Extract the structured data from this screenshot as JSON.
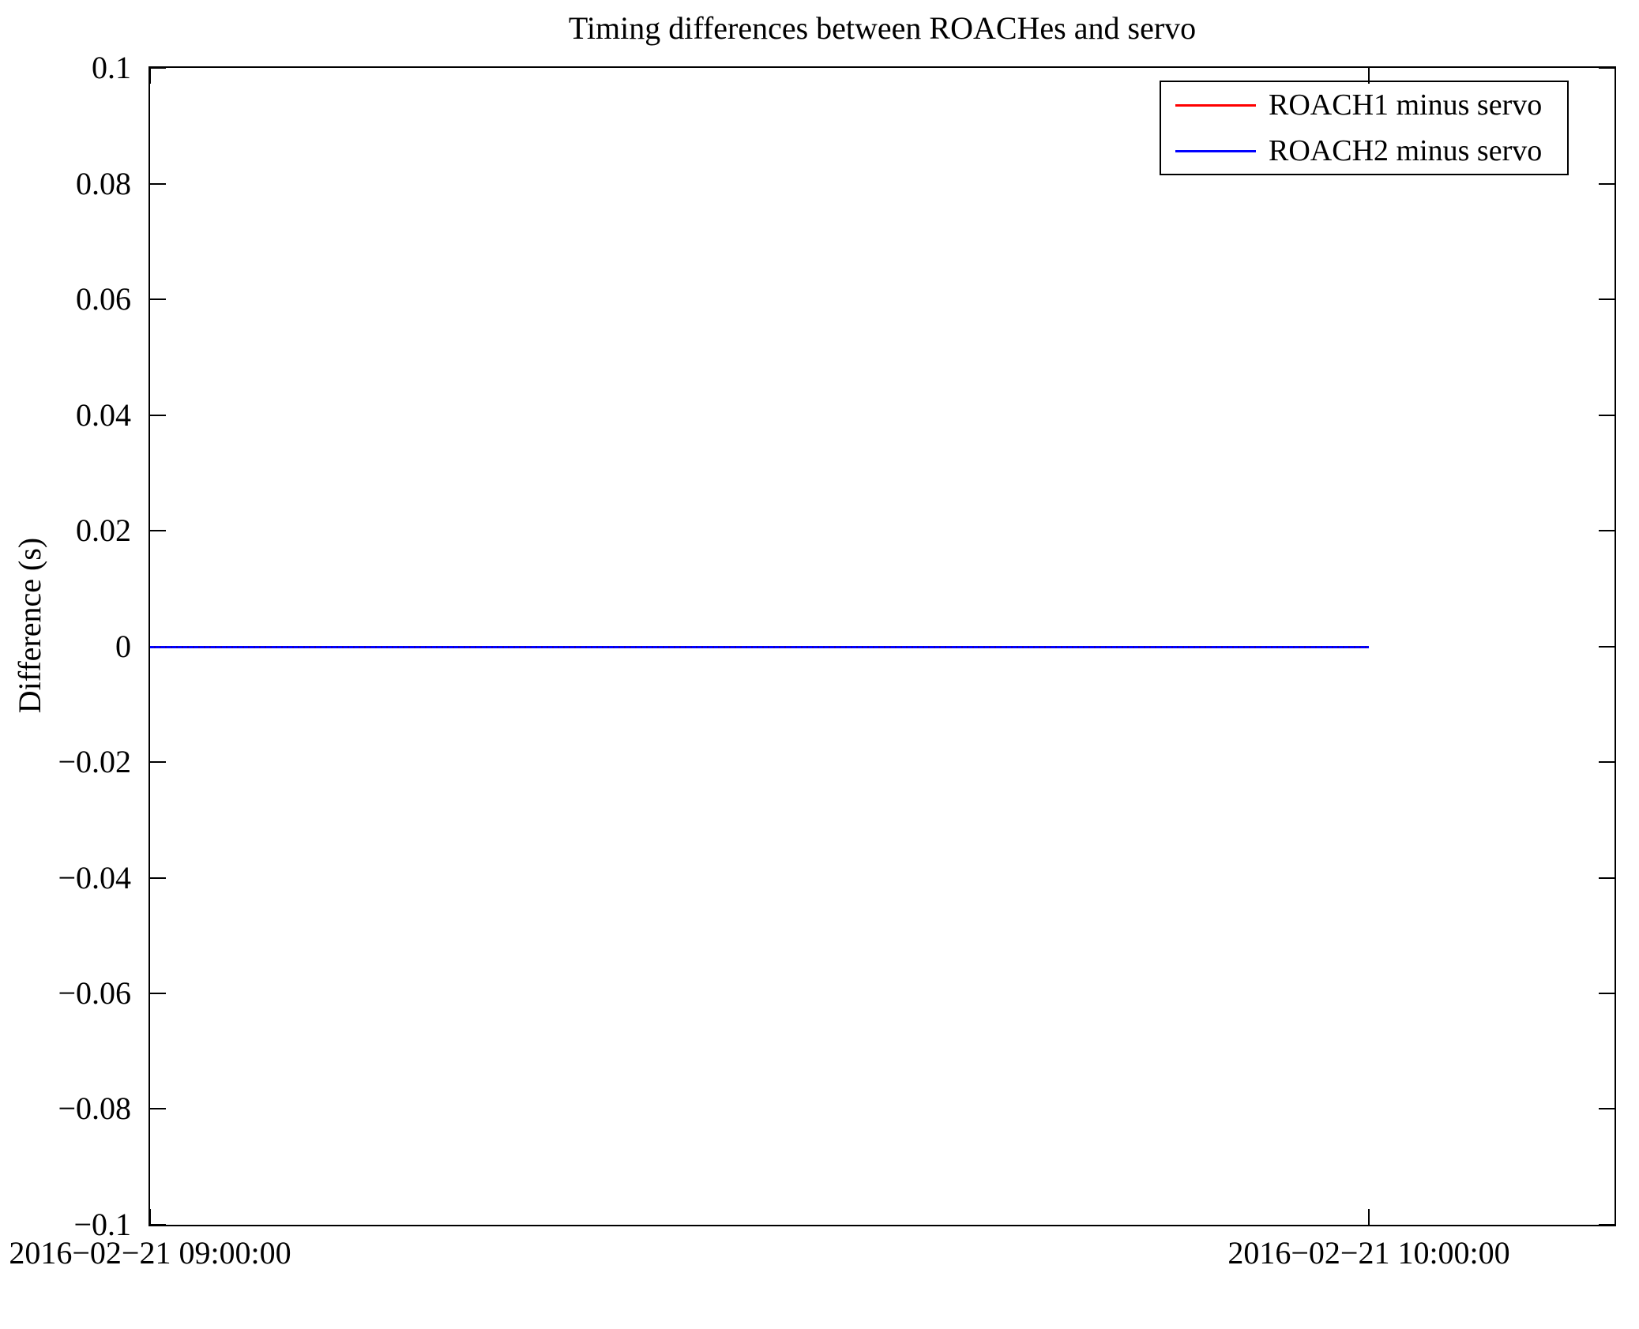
{
  "chart_data": {
    "type": "line",
    "title": "Timing differences between ROACHes and servo",
    "xlabel": "",
    "ylabel": "Difference (s)",
    "ylim": [
      -0.1,
      0.1
    ],
    "grid": false,
    "yticks": {
      "values": [
        0.1,
        0.08,
        0.06,
        0.04,
        0.02,
        0,
        -0.02,
        -0.04,
        -0.06,
        -0.08,
        -0.1
      ],
      "labels": [
        "0.1",
        "0.08",
        "0.06",
        "0.04",
        "0.02",
        "0",
        "−0.02",
        "−0.04",
        "−0.06",
        "−0.08",
        "−0.1"
      ]
    },
    "xticks": {
      "labels": [
        "2016−02−21 09:00:00",
        "2016−02−21 10:00:00"
      ],
      "fractions": [
        0.0,
        0.8325
      ]
    },
    "x_axis_note": "axis starts at 2016-02-21 09:00:00; 10:00:00 tick at ~83% of width; axis extends to ~10:12",
    "series": [
      {
        "name": "ROACH1 minus servo",
        "color": "#ff0000",
        "style": "solid",
        "x": [
          "2016-02-21 09:00:00",
          "2016-02-21 10:00:00"
        ],
        "values": [
          0.0,
          0.0
        ],
        "x_fractions": [
          0.0,
          0.8325
        ]
      },
      {
        "name": "ROACH2 minus servo",
        "color": "#0000ff",
        "style": "dotted",
        "x": [
          "2016-02-21 09:00:00",
          "2016-02-21 10:00:00"
        ],
        "values": [
          0.0,
          0.0
        ],
        "x_fractions": [
          0.0,
          0.8325
        ]
      }
    ],
    "legend": {
      "position": "upper right"
    }
  }
}
